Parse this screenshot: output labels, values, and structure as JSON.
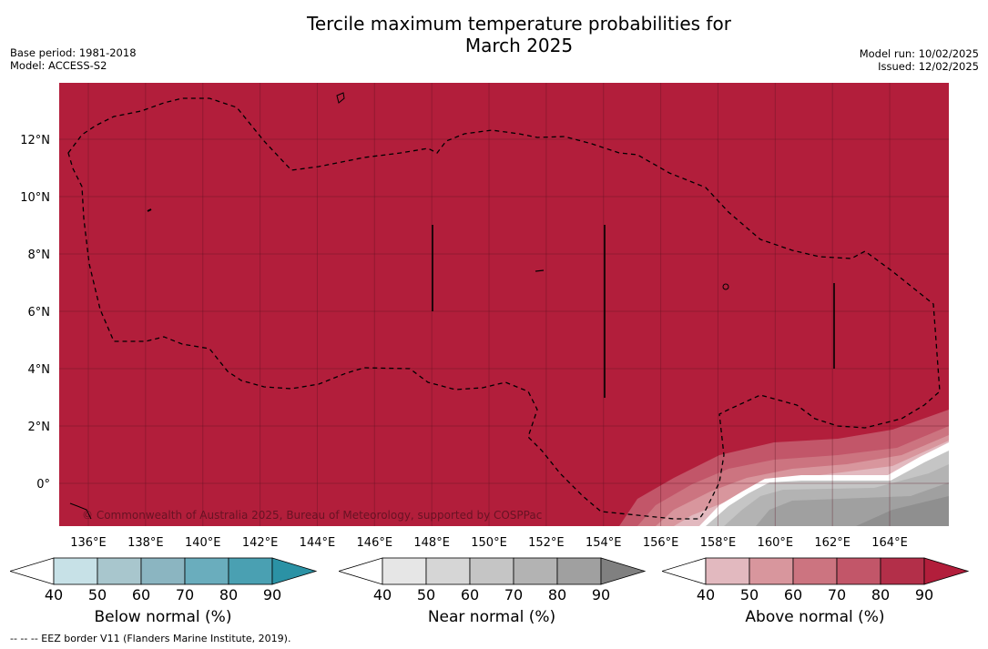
{
  "title_line1": "Tercile maximum temperature probabilities for",
  "title_line2": "March 2025",
  "base_period": "Base period: 1981-2018",
  "model": "Model: ACCESS-S2",
  "model_run": "Model run: 10/02/2025",
  "issued": "Issued: 12/02/2025",
  "copyright": "© Commonwealth of Australia 2025, Bureau of Meteorology, supported by COSPPac",
  "footnote": "--  --  -- EEZ border V11 (Flanders Marine Institute, 2019).",
  "map": {
    "lon_range": [
      135,
      166
    ],
    "lat_range": [
      -1.5,
      14
    ],
    "lon_ticks": [
      "136°E",
      "138°E",
      "140°E",
      "142°E",
      "144°E",
      "146°E",
      "148°E",
      "150°E",
      "152°E",
      "154°E",
      "156°E",
      "158°E",
      "160°E",
      "162°E",
      "164°E"
    ],
    "lat_ticks": [
      "0°",
      "2°N",
      "4°N",
      "6°N",
      "8°N",
      "10°N",
      "12°N"
    ],
    "dominant_category": "Above normal",
    "dominant_probability_range": "80-90"
  },
  "colorbars": [
    {
      "label": "Below normal (%)",
      "ticks": [
        "40",
        "50",
        "60",
        "70",
        "80",
        "90"
      ],
      "colors": [
        "#c7e1e7",
        "#a8c6cd",
        "#8bb5c1",
        "#6aadbd",
        "#4aa0b2",
        "#2b92a5"
      ]
    },
    {
      "label": "Near normal (%)",
      "ticks": [
        "40",
        "50",
        "60",
        "70",
        "80",
        "90"
      ],
      "colors": [
        "#e6e6e6",
        "#d6d6d6",
        "#c5c5c5",
        "#b3b3b3",
        "#a0a0a0",
        "#808080"
      ]
    },
    {
      "label": "Above normal (%)",
      "ticks": [
        "40",
        "50",
        "60",
        "70",
        "80",
        "90"
      ],
      "colors": [
        "#e2b9bf",
        "#d8969d",
        "#cc7480",
        "#c25669",
        "#b32f49",
        "#b21e3b"
      ]
    }
  ]
}
